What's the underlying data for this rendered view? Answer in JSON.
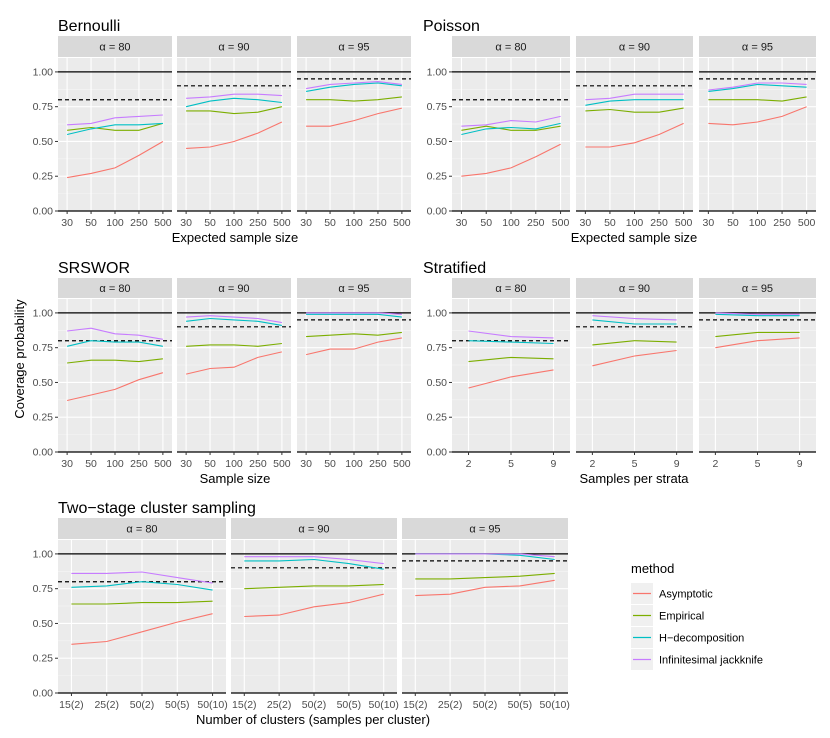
{
  "y_label": "Coverage probability",
  "y_ticks": [
    "0.00",
    "0.25",
    "0.50",
    "0.75",
    "1.00"
  ],
  "legend": {
    "title": "method",
    "entries": [
      {
        "name": "Asymptotic",
        "color": "#F8766D"
      },
      {
        "name": "Empirical",
        "color": "#7CAE00"
      },
      {
        "name": "H−decomposition",
        "color": "#00BFC4"
      },
      {
        "name": "Infinitesimal jackknife",
        "color": "#C77CFF"
      }
    ]
  },
  "chart_data": [
    {
      "type": "line",
      "title": "Bernoulli",
      "xlabel": "Expected sample size",
      "ylabel": "Coverage probability",
      "categories": [
        "30",
        "50",
        "100",
        "250",
        "500"
      ],
      "ylim": [
        0,
        1.1
      ],
      "facets": [
        {
          "label": "α = 80",
          "nominal": 0.8,
          "series": [
            {
              "name": "Asymptotic",
              "values": [
                0.24,
                0.27,
                0.31,
                0.4,
                0.5
              ]
            },
            {
              "name": "Empirical",
              "values": [
                0.58,
                0.6,
                0.58,
                0.58,
                0.63
              ]
            },
            {
              "name": "H−decomposition",
              "values": [
                0.55,
                0.59,
                0.62,
                0.62,
                0.63
              ]
            },
            {
              "name": "Infinitesimal jackknife",
              "values": [
                0.62,
                0.63,
                0.67,
                0.68,
                0.69
              ]
            }
          ]
        },
        {
          "label": "α = 90",
          "nominal": 0.9,
          "series": [
            {
              "name": "Asymptotic",
              "values": [
                0.45,
                0.46,
                0.5,
                0.56,
                0.64
              ]
            },
            {
              "name": "Empirical",
              "values": [
                0.72,
                0.72,
                0.7,
                0.71,
                0.75
              ]
            },
            {
              "name": "H−decomposition",
              "values": [
                0.75,
                0.79,
                0.81,
                0.8,
                0.78
              ]
            },
            {
              "name": "Infinitesimal jackknife",
              "values": [
                0.81,
                0.82,
                0.84,
                0.84,
                0.83
              ]
            }
          ]
        },
        {
          "label": "α = 95",
          "nominal": 0.95,
          "series": [
            {
              "name": "Asymptotic",
              "values": [
                0.61,
                0.61,
                0.65,
                0.7,
                0.74
              ]
            },
            {
              "name": "Empirical",
              "values": [
                0.8,
                0.8,
                0.79,
                0.8,
                0.82
              ]
            },
            {
              "name": "H−decomposition",
              "values": [
                0.86,
                0.89,
                0.91,
                0.92,
                0.9
              ]
            },
            {
              "name": "Infinitesimal jackknife",
              "values": [
                0.88,
                0.91,
                0.92,
                0.93,
                0.91
              ]
            }
          ]
        }
      ]
    },
    {
      "type": "line",
      "title": "Poisson",
      "xlabel": "Expected sample size",
      "ylabel": "Coverage probability",
      "categories": [
        "30",
        "50",
        "100",
        "250",
        "500"
      ],
      "ylim": [
        0,
        1.1
      ],
      "facets": [
        {
          "label": "α = 80",
          "nominal": 0.8,
          "series": [
            {
              "name": "Asymptotic",
              "values": [
                0.25,
                0.27,
                0.31,
                0.39,
                0.48
              ]
            },
            {
              "name": "Empirical",
              "values": [
                0.58,
                0.61,
                0.58,
                0.58,
                0.61
              ]
            },
            {
              "name": "H−decomposition",
              "values": [
                0.55,
                0.59,
                0.6,
                0.59,
                0.63
              ]
            },
            {
              "name": "Infinitesimal jackknife",
              "values": [
                0.61,
                0.62,
                0.65,
                0.64,
                0.68
              ]
            }
          ]
        },
        {
          "label": "α = 90",
          "nominal": 0.9,
          "series": [
            {
              "name": "Asymptotic",
              "values": [
                0.46,
                0.46,
                0.49,
                0.55,
                0.63
              ]
            },
            {
              "name": "Empirical",
              "values": [
                0.72,
                0.73,
                0.71,
                0.71,
                0.74
              ]
            },
            {
              "name": "H−decomposition",
              "values": [
                0.76,
                0.79,
                0.8,
                0.8,
                0.8
              ]
            },
            {
              "name": "Infinitesimal jackknife",
              "values": [
                0.8,
                0.81,
                0.84,
                0.84,
                0.84
              ]
            }
          ]
        },
        {
          "label": "α = 95",
          "nominal": 0.95,
          "series": [
            {
              "name": "Asymptotic",
              "values": [
                0.63,
                0.62,
                0.64,
                0.68,
                0.75
              ]
            },
            {
              "name": "Empirical",
              "values": [
                0.8,
                0.8,
                0.8,
                0.79,
                0.82
              ]
            },
            {
              "name": "H−decomposition",
              "values": [
                0.86,
                0.88,
                0.91,
                0.9,
                0.89
              ]
            },
            {
              "name": "Infinitesimal jackknife",
              "values": [
                0.87,
                0.89,
                0.92,
                0.92,
                0.91
              ]
            }
          ]
        }
      ]
    },
    {
      "type": "line",
      "title": "SRSWOR",
      "xlabel": "Sample size",
      "ylabel": "Coverage probability",
      "categories": [
        "30",
        "50",
        "100",
        "250",
        "500"
      ],
      "ylim": [
        0,
        1.1
      ],
      "facets": [
        {
          "label": "α = 80",
          "nominal": 0.8,
          "series": [
            {
              "name": "Asymptotic",
              "values": [
                0.37,
                0.41,
                0.45,
                0.52,
                0.57
              ]
            },
            {
              "name": "Empirical",
              "values": [
                0.64,
                0.66,
                0.66,
                0.65,
                0.67
              ]
            },
            {
              "name": "H−decomposition",
              "values": [
                0.76,
                0.8,
                0.79,
                0.79,
                0.76
              ]
            },
            {
              "name": "Infinitesimal jackknife",
              "values": [
                0.87,
                0.89,
                0.85,
                0.84,
                0.81
              ]
            }
          ]
        },
        {
          "label": "α = 90",
          "nominal": 0.9,
          "series": [
            {
              "name": "Asymptotic",
              "values": [
                0.56,
                0.6,
                0.61,
                0.68,
                0.72
              ]
            },
            {
              "name": "Empirical",
              "values": [
                0.76,
                0.77,
                0.77,
                0.76,
                0.78
              ]
            },
            {
              "name": "H−decomposition",
              "values": [
                0.94,
                0.96,
                0.95,
                0.94,
                0.91
              ]
            },
            {
              "name": "Infinitesimal jackknife",
              "values": [
                0.97,
                0.98,
                0.97,
                0.96,
                0.93
              ]
            }
          ]
        },
        {
          "label": "α = 95",
          "nominal": 0.95,
          "series": [
            {
              "name": "Asymptotic",
              "values": [
                0.7,
                0.74,
                0.74,
                0.79,
                0.82
              ]
            },
            {
              "name": "Empirical",
              "values": [
                0.83,
                0.84,
                0.85,
                0.84,
                0.86
              ]
            },
            {
              "name": "H−decomposition",
              "values": [
                0.99,
                0.99,
                0.99,
                0.99,
                0.97
              ]
            },
            {
              "name": "Infinitesimal jackknife",
              "values": [
                1.0,
                1.0,
                1.0,
                1.0,
                0.99
              ]
            }
          ]
        }
      ]
    },
    {
      "type": "line",
      "title": "Stratified",
      "xlabel": "Samples per strata",
      "ylabel": "Coverage probability",
      "categories": [
        "2",
        "5",
        "9"
      ],
      "ylim": [
        0,
        1.1
      ],
      "facets": [
        {
          "label": "α = 80",
          "nominal": 0.8,
          "series": [
            {
              "name": "Asymptotic",
              "values": [
                0.46,
                0.54,
                0.59
              ]
            },
            {
              "name": "Empirical",
              "values": [
                0.65,
                0.68,
                0.67
              ]
            },
            {
              "name": "H−decomposition",
              "values": [
                0.8,
                0.79,
                0.78
              ]
            },
            {
              "name": "Infinitesimal jackknife",
              "values": [
                0.87,
                0.83,
                0.82
              ]
            }
          ]
        },
        {
          "label": "α = 90",
          "nominal": 0.9,
          "series": [
            {
              "name": "Asymptotic",
              "values": [
                0.62,
                0.69,
                0.73
              ]
            },
            {
              "name": "Empirical",
              "values": [
                0.77,
                0.8,
                0.79
              ]
            },
            {
              "name": "H−decomposition",
              "values": [
                0.95,
                0.92,
                0.92
              ]
            },
            {
              "name": "Infinitesimal jackknife",
              "values": [
                0.98,
                0.96,
                0.95
              ]
            }
          ]
        },
        {
          "label": "α = 95",
          "nominal": 0.95,
          "series": [
            {
              "name": "Asymptotic",
              "values": [
                0.75,
                0.8,
                0.82
              ]
            },
            {
              "name": "Empirical",
              "values": [
                0.83,
                0.86,
                0.86
              ]
            },
            {
              "name": "H−decomposition",
              "values": [
                0.99,
                0.98,
                0.98
              ]
            },
            {
              "name": "Infinitesimal jackknife",
              "values": [
                1.0,
                0.99,
                0.99
              ]
            }
          ]
        }
      ]
    },
    {
      "type": "line",
      "title": "Two−stage cluster sampling",
      "xlabel": "Number of clusters (samples per cluster)",
      "ylabel": "Coverage probability",
      "categories": [
        "15(2)",
        "25(2)",
        "50(2)",
        "50(5)",
        "50(10)"
      ],
      "ylim": [
        0,
        1.1
      ],
      "facets": [
        {
          "label": "α = 80",
          "nominal": 0.8,
          "series": [
            {
              "name": "Asymptotic",
              "values": [
                0.35,
                0.37,
                0.44,
                0.51,
                0.57
              ]
            },
            {
              "name": "Empirical",
              "values": [
                0.64,
                0.64,
                0.65,
                0.65,
                0.66
              ]
            },
            {
              "name": "H−decomposition",
              "values": [
                0.76,
                0.77,
                0.8,
                0.78,
                0.74
              ]
            },
            {
              "name": "Infinitesimal jackknife",
              "values": [
                0.86,
                0.86,
                0.87,
                0.83,
                0.79
              ]
            }
          ]
        },
        {
          "label": "α = 90",
          "nominal": 0.9,
          "series": [
            {
              "name": "Asymptotic",
              "values": [
                0.55,
                0.56,
                0.62,
                0.65,
                0.71
              ]
            },
            {
              "name": "Empirical",
              "values": [
                0.75,
                0.76,
                0.77,
                0.77,
                0.78
              ]
            },
            {
              "name": "H−decomposition",
              "values": [
                0.95,
                0.95,
                0.96,
                0.93,
                0.89
              ]
            },
            {
              "name": "Infinitesimal jackknife",
              "values": [
                0.98,
                0.98,
                0.98,
                0.96,
                0.93
              ]
            }
          ]
        },
        {
          "label": "α = 95",
          "nominal": 0.95,
          "series": [
            {
              "name": "Asymptotic",
              "values": [
                0.7,
                0.71,
                0.76,
                0.77,
                0.81
              ]
            },
            {
              "name": "Empirical",
              "values": [
                0.82,
                0.82,
                0.83,
                0.84,
                0.86
              ]
            },
            {
              "name": "H−decomposition",
              "values": [
                1.0,
                1.0,
                1.0,
                0.99,
                0.96
              ]
            },
            {
              "name": "Infinitesimal jackknife",
              "values": [
                1.0,
                1.0,
                1.0,
                1.0,
                0.98
              ]
            }
          ]
        }
      ]
    }
  ]
}
